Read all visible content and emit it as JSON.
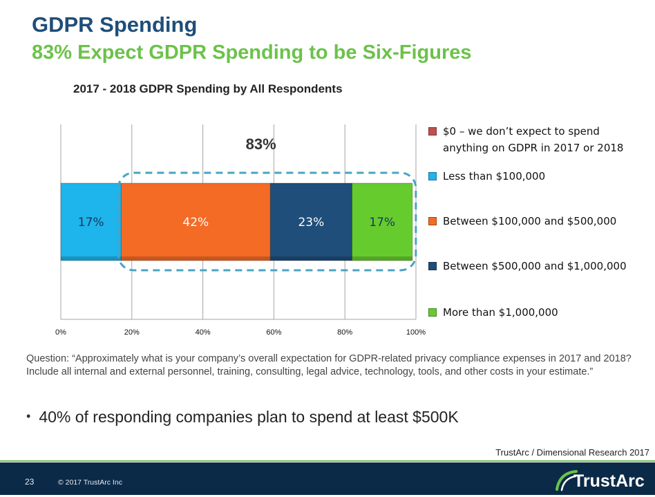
{
  "slide": {
    "title": "GDPR Spending",
    "subtitle": "83% Expect GDPR Spending to be Six-Figures",
    "question": "Question: “Approximately what is your company’s overall expectation for GDPR-related privacy compliance expenses in 2017 and 2018?  Include all internal and external personnel, training, consulting, legal advice, technology, tools, and other costs in your estimate.”",
    "bullet": "40% of responding companies plan to spend at least $500K",
    "source": "TrustArc / Dimensional Research 2017",
    "page_number": "23",
    "copyright": "© 2017 TrustArc Inc",
    "logo_text": "TrustArc",
    "colors": {
      "title": "#1f4e79",
      "subtitle": "#6cc24a",
      "footer": "#0b2a48"
    }
  },
  "chart_data": {
    "type": "bar",
    "orientation": "horizontal-stacked",
    "title": "2017 - 2018 GDPR Spending by All Respondents",
    "xlim": [
      0,
      100
    ],
    "x_ticks": [
      "0%",
      "20%",
      "40%",
      "60%",
      "80%",
      "100%"
    ],
    "grid": true,
    "legend_position": "right",
    "callout_label": "83%",
    "callout_covers": [
      "Between $100,000 and $500,000",
      "Between $500,000 and $1,000,000",
      "More than $1,000,000"
    ],
    "series": [
      {
        "name": "$0 – we don’t expect to spend anything on GDPR in 2017 or 2018",
        "value": 0,
        "label": "",
        "color": "#c0504d"
      },
      {
        "name": "Less than $100,000",
        "value": 17,
        "label": "17%",
        "color": "#1eb4ec"
      },
      {
        "name": "Between $100,000 and $500,000",
        "value": 42,
        "label": "42%",
        "color": "#f46b26"
      },
      {
        "name": "Between $500,000 and $1,000,000",
        "value": 23,
        "label": "23%",
        "color": "#1f4e7a"
      },
      {
        "name": "More than $1,000,000",
        "value": 17,
        "label": "17%",
        "color": "#66cc2e"
      }
    ]
  }
}
